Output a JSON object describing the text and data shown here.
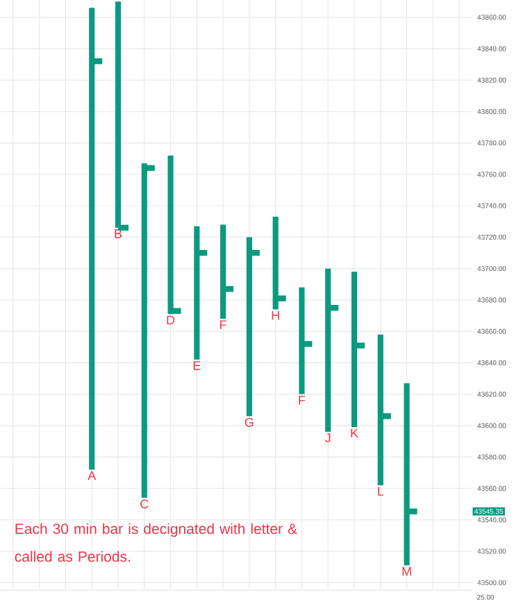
{
  "chart_data": {
    "type": "bar",
    "categories": [
      null,
      null,
      null,
      "A",
      "B",
      "C",
      "D",
      "E",
      "F",
      "G",
      "H",
      "F",
      "J",
      "K",
      "L",
      "M",
      null,
      null
    ],
    "series": [
      {
        "color": "#0b9a7f",
        "base": [
          null,
          null,
          null,
          43572,
          43726,
          43554,
          43671,
          43642,
          43668,
          43606,
          43674,
          43620,
          43596,
          43599,
          43562,
          43511,
          null,
          null
        ],
        "values": [
          null,
          null,
          null,
          294,
          144,
          213,
          101,
          85,
          60,
          114,
          59,
          68,
          104,
          99,
          96,
          116,
          null,
          null
        ]
      },
      {
        "type": "scatter",
        "color": "#0b9a7f",
        "values": [
          null,
          null,
          null,
          43832,
          43726,
          43764,
          43673,
          43710,
          43687,
          43710,
          43681,
          43652,
          43675,
          43651,
          43606,
          43545.35,
          null,
          null
        ]
      }
    ],
    "ylim": [
      43496,
      43871
    ],
    "yticks": [
      {
        "value": 43500,
        "label": "43500.00"
      },
      {
        "value": 43520,
        "label": "43520.00"
      },
      {
        "value": 43540,
        "label": "43540.00"
      },
      {
        "value": 43560,
        "label": "43560.00"
      },
      {
        "value": 43580,
        "label": "43580.00"
      },
      {
        "value": 43600,
        "label": "43600.00"
      },
      {
        "value": 43620,
        "label": "43620.00"
      },
      {
        "value": 43640,
        "label": "43640.00"
      },
      {
        "value": 43660,
        "label": "43660.00"
      },
      {
        "value": 43680,
        "label": "43680.00"
      },
      {
        "value": 43700,
        "label": "43700.00"
      },
      {
        "value": 43720,
        "label": "43720.00"
      },
      {
        "value": 43740,
        "label": "43740.00"
      },
      {
        "value": 43760,
        "label": "43760.00"
      },
      {
        "value": 43780,
        "label": "43780.00"
      },
      {
        "value": 43800,
        "label": "43800.00"
      },
      {
        "value": 43820,
        "label": "43820.00"
      },
      {
        "value": 43840,
        "label": "43840.00"
      },
      {
        "value": 43860,
        "label": "43860.00"
      }
    ],
    "annotations": [
      "Each 30 min bar is decignated with letter & called as Periods.",
      "25.00",
      "43545.35"
    ],
    "grid": true,
    "tick_labels": "y"
  }
}
